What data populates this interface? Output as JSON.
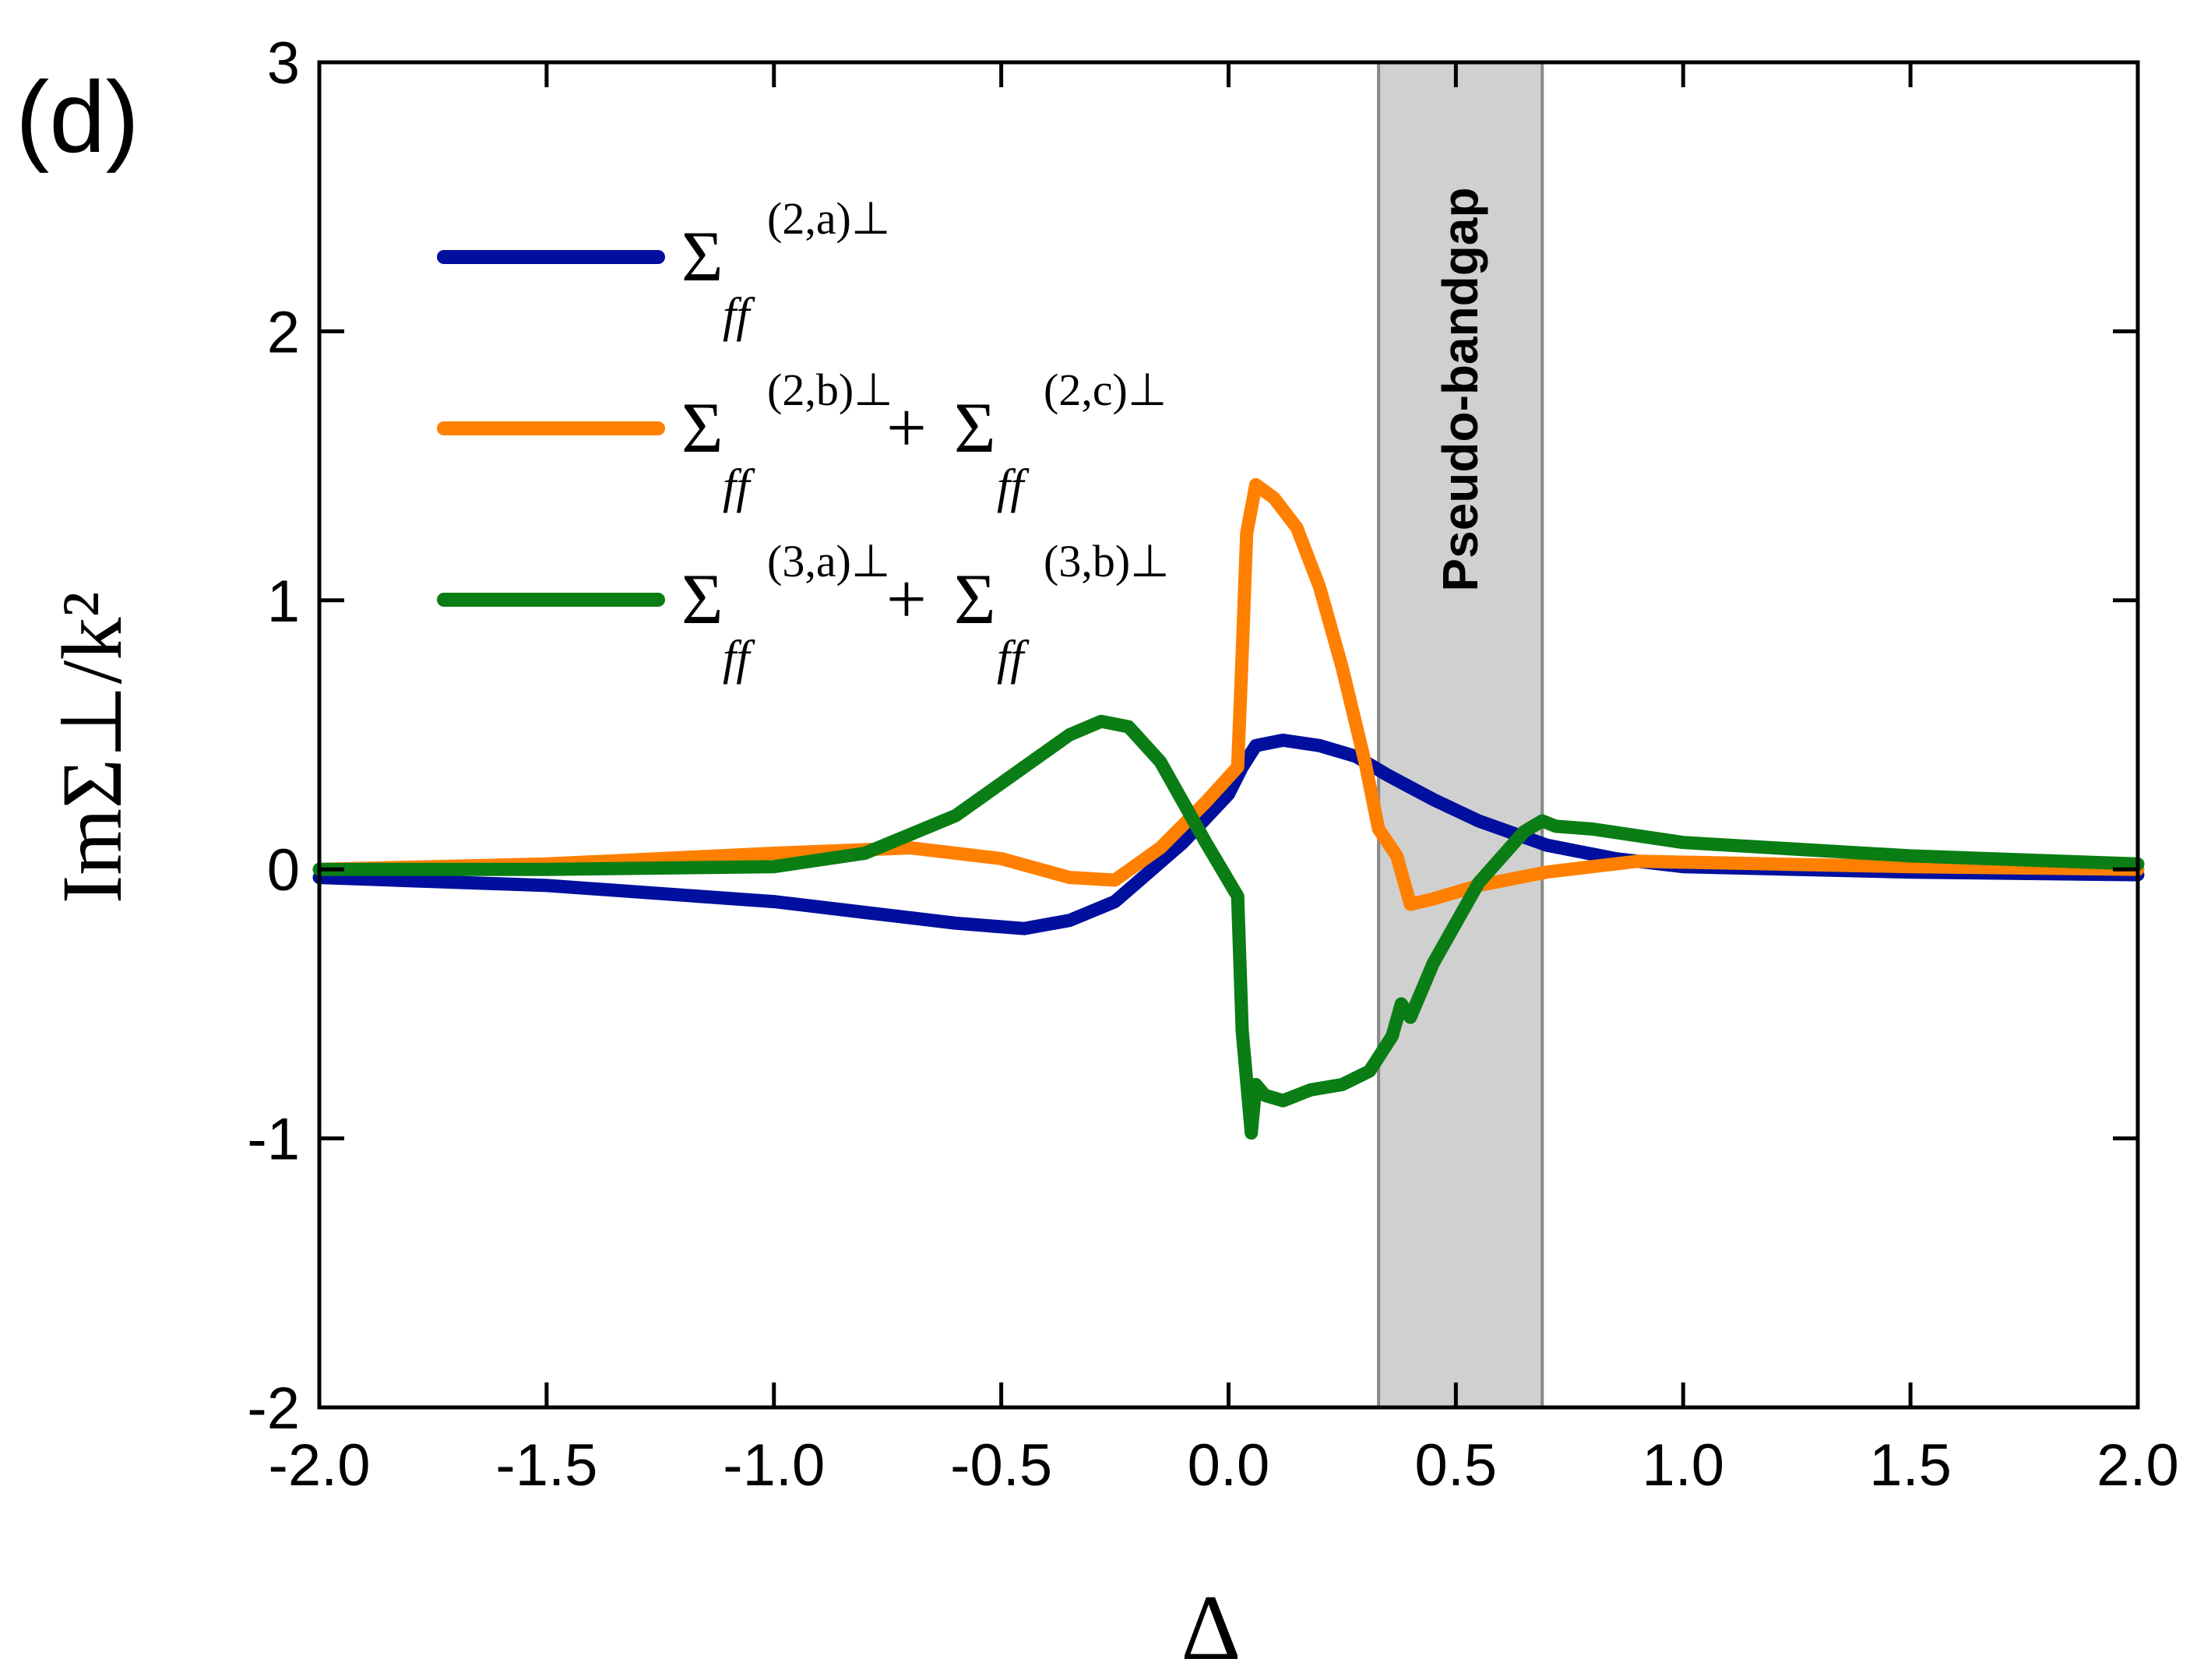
{
  "chart_data": {
    "type": "line",
    "panel_label": "(d)",
    "xlabel": "Δ",
    "ylabel": "ImΣ⊥/k²",
    "xlim": [
      -2.0,
      2.0
    ],
    "ylim": [
      -2,
      3
    ],
    "x_ticks": [
      "-2.0",
      "-1.5",
      "-1.0",
      "-0.5",
      "0.0",
      "0.5",
      "1.0",
      "1.5",
      "2.0"
    ],
    "y_ticks": [
      "-2",
      "-1",
      "0",
      "1",
      "2",
      "3"
    ],
    "shaded_region": {
      "label": "Pseudo-bandgap",
      "x_start": 0.33,
      "x_end": 0.69,
      "color": "#c0c0c0"
    },
    "series": [
      {
        "name": "Σff(2,a)⊥",
        "legend": {
          "sigma": "Σ",
          "sub": "ff",
          "sup": "(2,a)⊥",
          "plus": "",
          "sigma2": "",
          "sub2": "",
          "sup2": ""
        },
        "color": "#000f9e",
        "x": [
          -2.0,
          -1.5,
          -1.0,
          -0.8,
          -0.6,
          -0.45,
          -0.35,
          -0.25,
          -0.1,
          0.0,
          0.03,
          0.06,
          0.12,
          0.2,
          0.28,
          0.35,
          0.45,
          0.55,
          0.7,
          0.85,
          1.0,
          1.5,
          2.0
        ],
        "y": [
          -0.03,
          -0.06,
          -0.12,
          -0.16,
          -0.2,
          -0.22,
          -0.19,
          -0.12,
          0.1,
          0.28,
          0.38,
          0.46,
          0.48,
          0.46,
          0.42,
          0.35,
          0.26,
          0.18,
          0.09,
          0.04,
          0.01,
          -0.01,
          -0.02
        ]
      },
      {
        "name": "Σff(2,b)⊥+Σff(2,c)⊥",
        "legend": {
          "sigma": "Σ",
          "sub": "ff",
          "sup": "(2,b)⊥",
          "plus": "+",
          "sigma2": "Σ",
          "sub2": "ff",
          "sup2": "(2,c)⊥"
        },
        "color": "#ff8000",
        "x": [
          -2.0,
          -1.5,
          -1.0,
          -0.7,
          -0.5,
          -0.35,
          -0.25,
          -0.15,
          -0.05,
          0.02,
          0.03,
          0.04,
          0.06,
          0.1,
          0.15,
          0.2,
          0.25,
          0.3,
          0.33,
          0.37,
          0.4,
          0.45,
          0.55,
          0.7,
          0.9,
          1.2,
          1.5,
          2.0
        ],
        "y": [
          0.0,
          0.02,
          0.06,
          0.08,
          0.04,
          -0.03,
          -0.04,
          0.08,
          0.25,
          0.38,
          0.8,
          1.25,
          1.43,
          1.38,
          1.27,
          1.05,
          0.75,
          0.4,
          0.15,
          0.05,
          -0.13,
          -0.11,
          -0.06,
          -0.01,
          0.03,
          0.02,
          0.01,
          0.0
        ]
      },
      {
        "name": "Σff(3,a)⊥+Σff(3,b)⊥",
        "legend": {
          "sigma": "Σ",
          "sub": "ff",
          "sup": "(3,a)⊥",
          "plus": "+",
          "sigma2": "Σ",
          "sub2": "ff",
          "sup2": "(3,b)⊥"
        },
        "color": "#0a7d14",
        "x": [
          -2.0,
          -1.5,
          -1.0,
          -0.8,
          -0.6,
          -0.45,
          -0.35,
          -0.28,
          -0.22,
          -0.15,
          -0.05,
          0.02,
          0.03,
          0.05,
          0.06,
          0.08,
          0.12,
          0.18,
          0.25,
          0.31,
          0.36,
          0.38,
          0.4,
          0.45,
          0.55,
          0.65,
          0.69,
          0.72,
          0.8,
          1.0,
          1.5,
          2.0
        ],
        "y": [
          0.0,
          0.0,
          0.01,
          0.06,
          0.2,
          0.38,
          0.5,
          0.55,
          0.53,
          0.4,
          0.1,
          -0.1,
          -0.6,
          -0.98,
          -0.8,
          -0.84,
          -0.86,
          -0.82,
          -0.8,
          -0.75,
          -0.62,
          -0.5,
          -0.55,
          -0.35,
          -0.05,
          0.14,
          0.18,
          0.16,
          0.15,
          0.1,
          0.05,
          0.02
        ]
      }
    ]
  }
}
